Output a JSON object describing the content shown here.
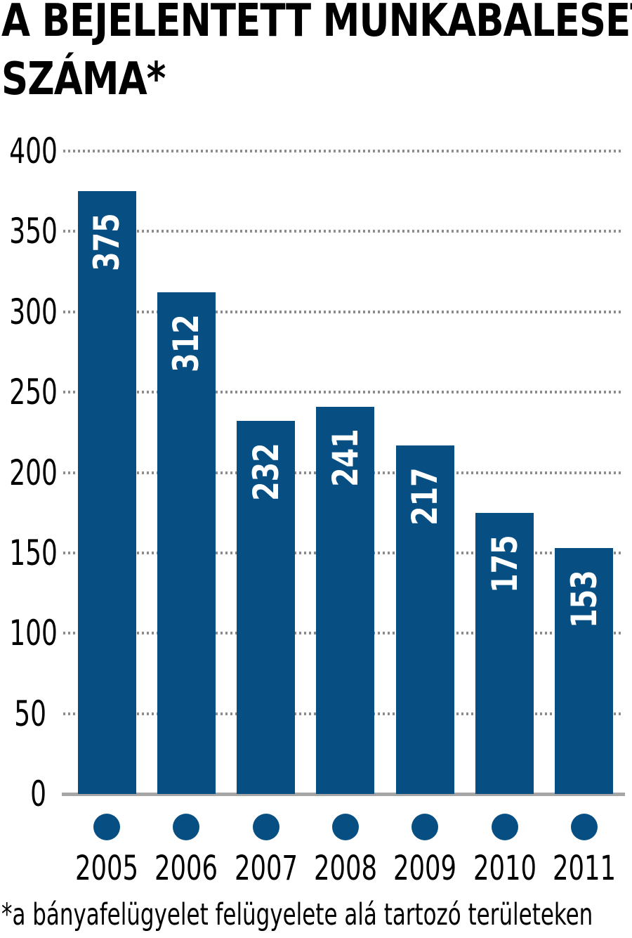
{
  "header": {
    "title_line1": "A BEJELENTETT MUNKABALESETEK",
    "title_line2": "SZÁMA*"
  },
  "chart_data": {
    "type": "bar",
    "title": "A BEJELENTETT MUNKABALESETEK SZÁMA*",
    "categories": [
      "2005",
      "2006",
      "2007",
      "2008",
      "2009",
      "2010",
      "2011"
    ],
    "values": [
      375,
      312,
      232,
      241,
      217,
      175,
      153
    ],
    "xlabel": "",
    "ylabel": "",
    "ylim": [
      0,
      400
    ],
    "yticks": [
      400,
      350,
      300,
      250,
      200,
      150,
      100,
      50,
      0
    ],
    "grid": "horizontal-dotted",
    "legend_position": "none",
    "value_labels": "inside bar top, rotated 90deg counterclockwise, white",
    "category_markers": "filled circle below each bar",
    "footnote": "*a bányafelügyelet felügyelete alá tartozó területeken",
    "colors": {
      "bar": "#074f83",
      "dot": "#074f83",
      "grid": "#8c8c8c",
      "axis_line": "#a6a6a6",
      "text": "#000000",
      "value_label": "#ffffff",
      "background": "#ffffff"
    }
  }
}
